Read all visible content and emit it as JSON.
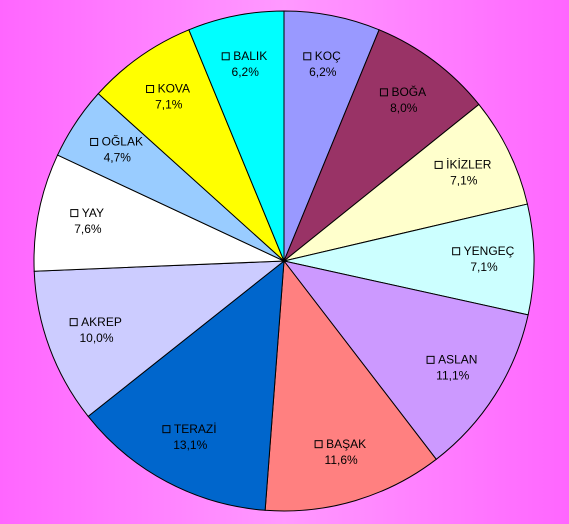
{
  "chart_data": {
    "type": "pie",
    "categories": [
      "KOÇ",
      "BOĞA",
      "İKİZLER",
      "YENGEÇ",
      "ASLAN",
      "BAŞAK",
      "TERAZİ",
      "AKREP",
      "YAY",
      "OĞLAK",
      "KOVA",
      "BALIK"
    ],
    "values": [
      6.2,
      8.0,
      7.1,
      7.1,
      11.1,
      11.6,
      13.1,
      10.0,
      7.6,
      4.7,
      7.1,
      6.2
    ],
    "value_labels": [
      "6,2%",
      "8,0%",
      "7,1%",
      "7,1%",
      "11,1%",
      "11,6%",
      "13,1%",
      "10,0%",
      "7,6%",
      "4,7%",
      "7,1%",
      "6,2%"
    ],
    "colors": [
      "#9999ff",
      "#993366",
      "#ffffcc",
      "#ccffff",
      "#cc99ff",
      "#ff8080",
      "#0066cc",
      "#ccccff",
      "#ffffff",
      "#99ccff",
      "#ffff00",
      "#00ffff"
    ]
  }
}
